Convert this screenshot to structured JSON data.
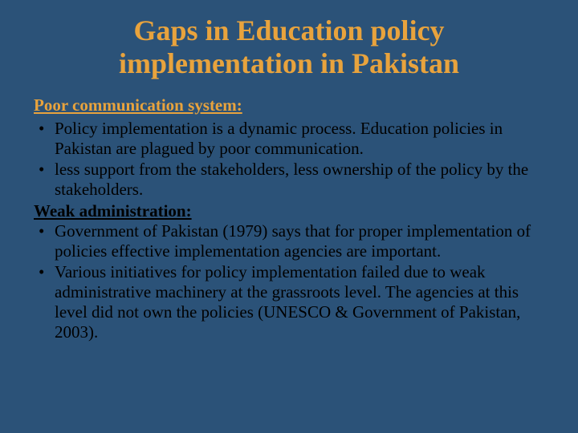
{
  "background_color": "#2b5278",
  "title_color": "#e8a33d",
  "subheading_color": "#e8a33d",
  "body_color": "#000000",
  "font_family": "Times New Roman",
  "title_fontsize": 36,
  "body_fontsize": 21,
  "title": "Gaps in Education policy implementation in Pakistan",
  "section1": {
    "heading": "Poor communication system:",
    "bullets": [
      "Policy implementation is a dynamic process. Education policies in Pakistan are plagued by poor communication.",
      "less support from the stakeholders, less ownership of the policy by the stakeholders."
    ]
  },
  "section2": {
    "heading": "Weak administration:",
    "bullets": [
      "Government of Pakistan (1979) says that for proper implementation of policies effective implementation agencies are important.",
      "Various initiatives for policy implementation failed due to weak administrative machinery at the grassroots level. The agencies at this level did not own the policies (UNESCO & Government of Pakistan, 2003)."
    ]
  }
}
